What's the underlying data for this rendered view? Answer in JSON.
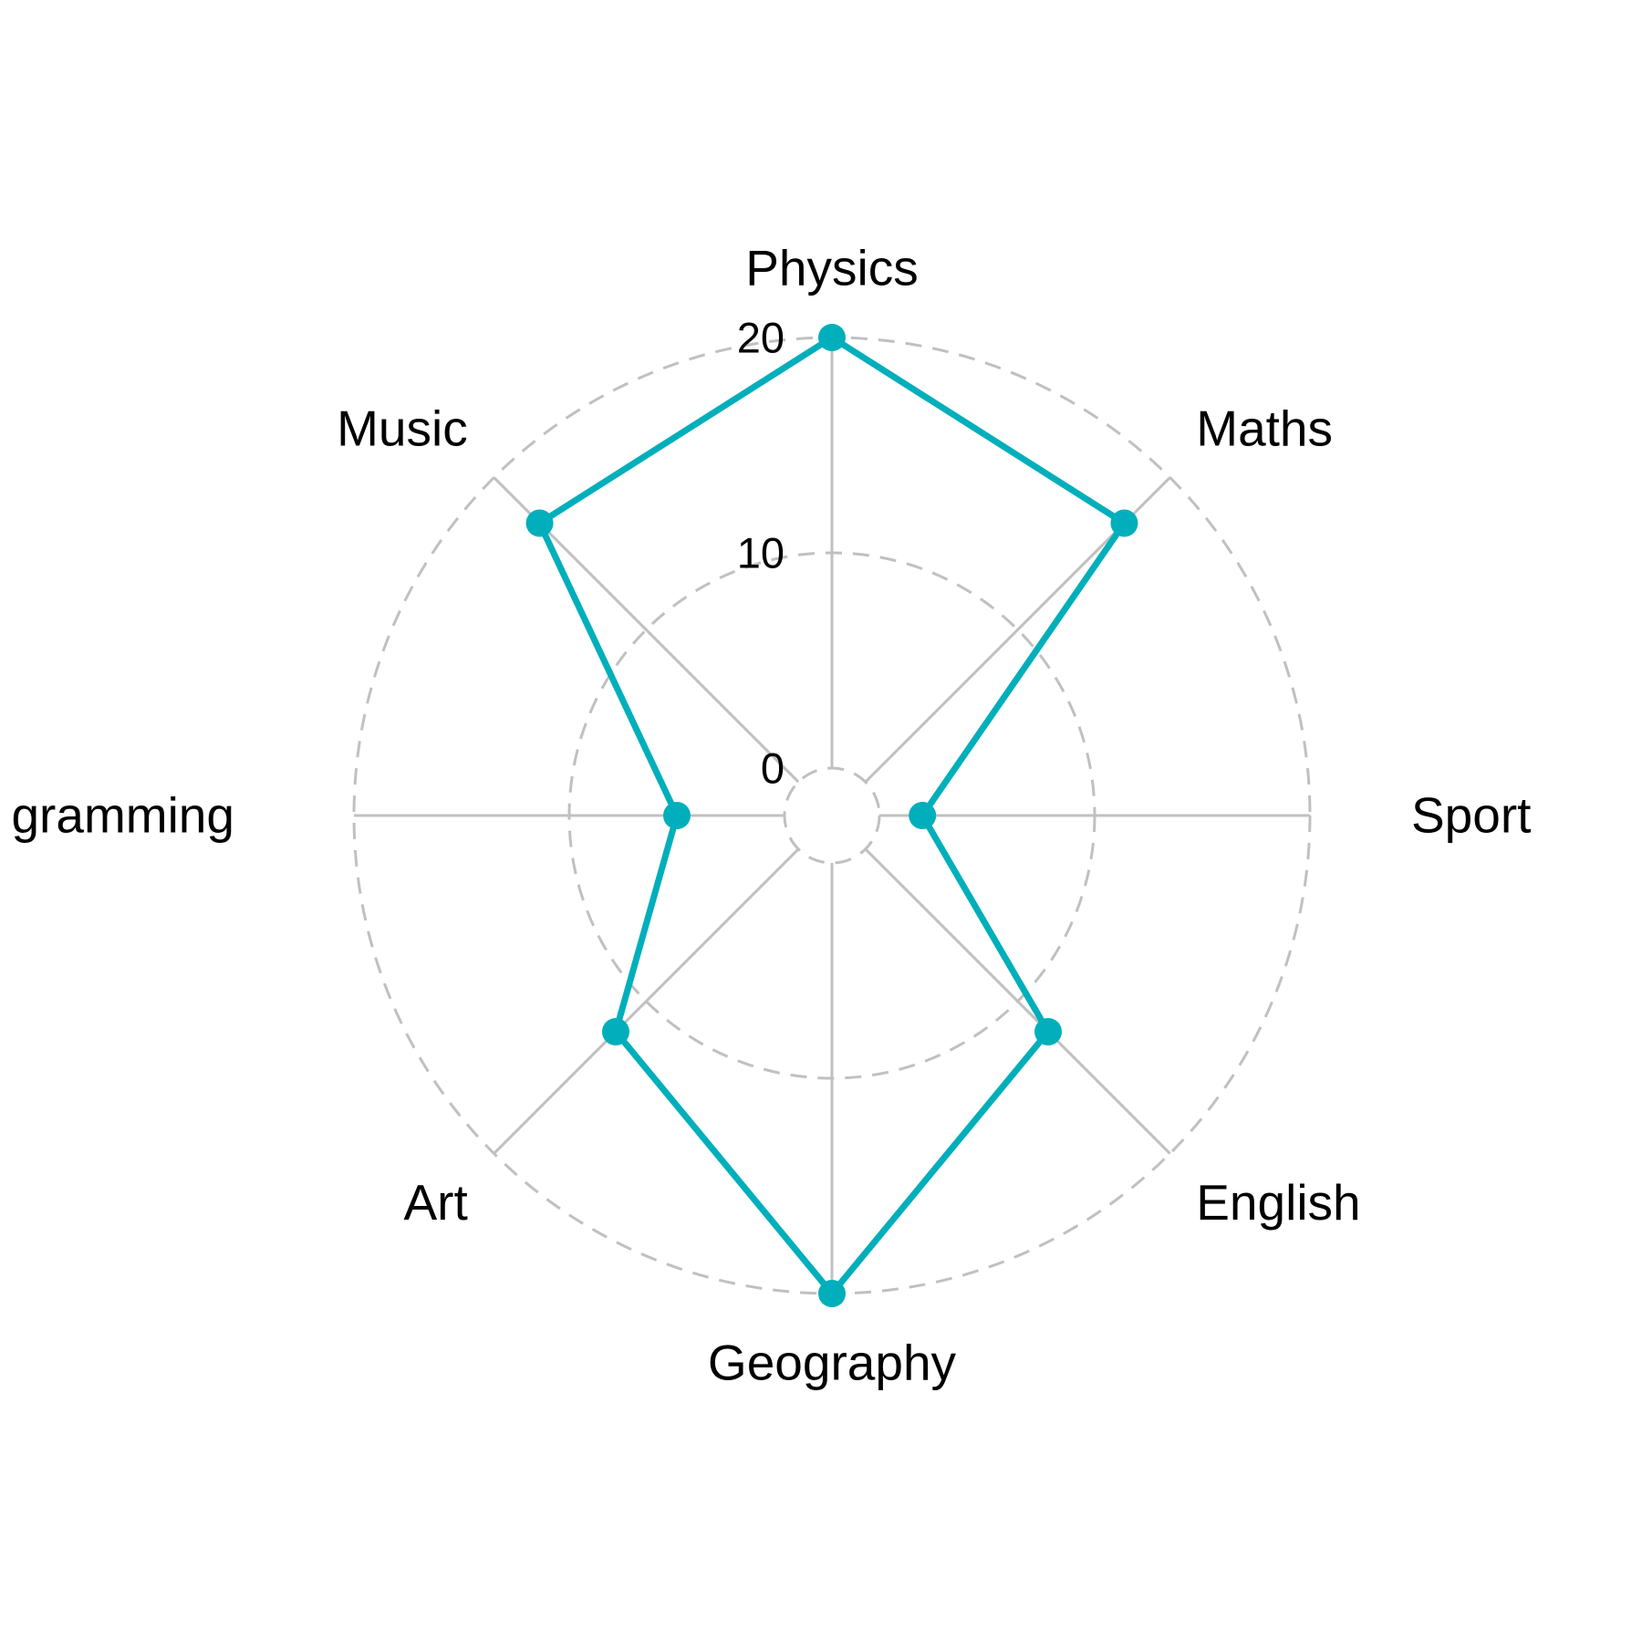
{
  "chart_data": {
    "type": "radar",
    "title": "",
    "categories": [
      "Physics",
      "Maths",
      "Sport",
      "English",
      "Geography",
      "Art",
      "gramming",
      "Music"
    ],
    "series": [
      {
        "values": [
          20,
          17,
          2,
          12,
          20,
          12,
          5,
          17
        ]
      }
    ],
    "ylim": [
      0,
      20
    ],
    "radial_ticks": [
      0,
      10,
      20
    ],
    "radial_tick_labels": [
      "0",
      "10",
      "20"
    ],
    "grid": true,
    "legend": "none",
    "colors": {
      "series": "#00AFBB",
      "grid": "#C0C0C0",
      "text": "#000000"
    }
  }
}
